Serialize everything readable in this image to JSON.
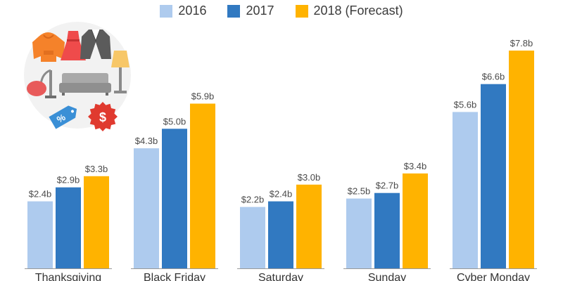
{
  "chart_data": {
    "type": "bar",
    "categories": [
      "Thanksgiving",
      "Black Friday",
      "Saturday",
      "Sunday",
      "Cyber Monday"
    ],
    "series": [
      {
        "name": "2016",
        "color": "#aecbee",
        "values": [
          2.4,
          4.3,
          2.2,
          2.5,
          5.6
        ],
        "labels": [
          "$2.4b",
          "$4.3b",
          "$2.2b",
          "$2.5b",
          "$5.6b"
        ]
      },
      {
        "name": "2017",
        "color": "#3179c1",
        "values": [
          2.9,
          5.0,
          2.4,
          2.7,
          6.6
        ],
        "labels": [
          "$2.9b",
          "$5.0b",
          "$2.4b",
          "$2.7b",
          "$6.6b"
        ]
      },
      {
        "name": "2018 (Forecast)",
        "color": "#ffb300",
        "values": [
          3.3,
          5.9,
          3.0,
          3.4,
          7.8
        ],
        "labels": [
          "$3.3b",
          "$5.9b",
          "$3.0b",
          "$3.4b",
          "$7.8b"
        ]
      }
    ],
    "title": "",
    "xlabel": "",
    "ylabel": "",
    "ylim": [
      0,
      7.8
    ],
    "grid": false,
    "legend": "top-center"
  },
  "illustration": {
    "icons": [
      "hoodie-icon",
      "dress-icon",
      "blazer-icon",
      "floor-lamp-icon",
      "vacuum-cleaner-icon",
      "sofa-icon",
      "discount-tag-icon",
      "dollar-badge-icon"
    ],
    "badge_text": "$",
    "tag_text": "%"
  }
}
